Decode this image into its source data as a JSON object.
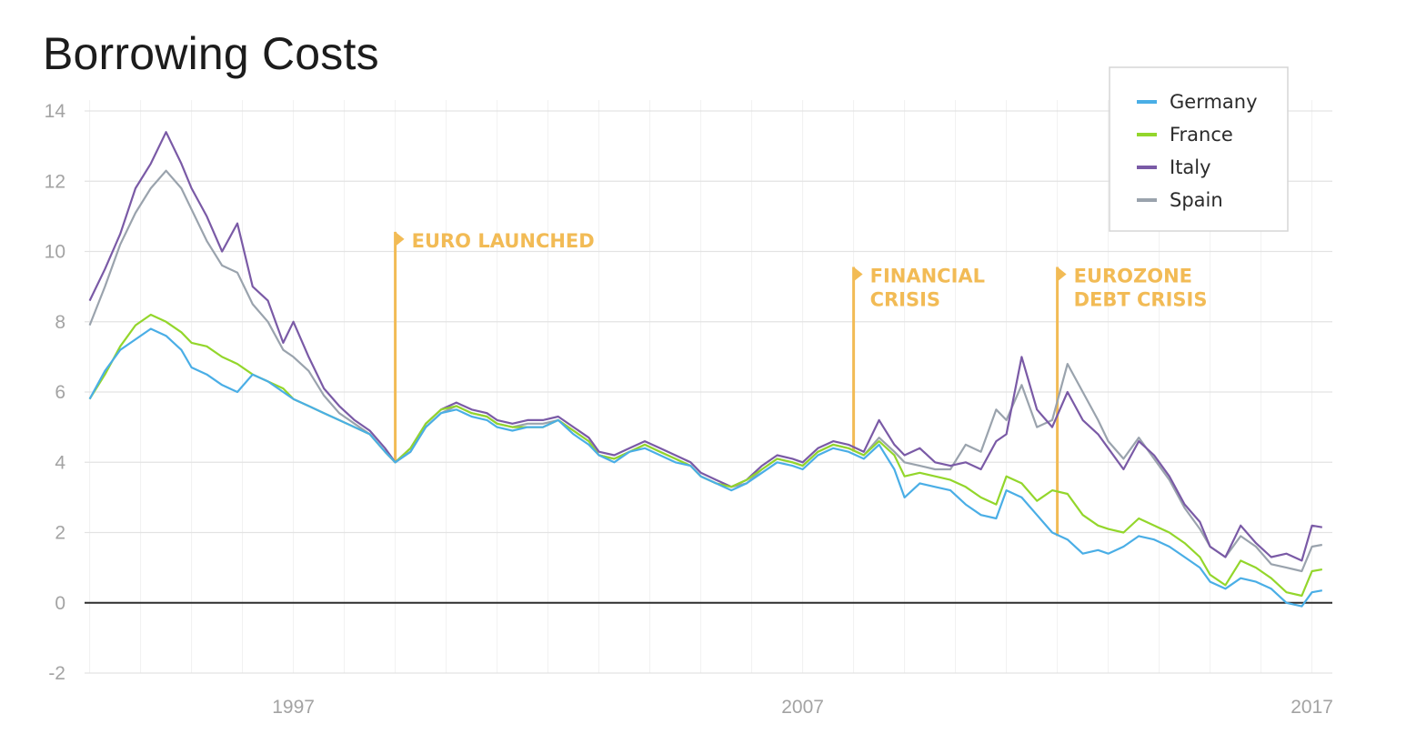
{
  "title": "Borrowing Costs",
  "chart_data": {
    "type": "line",
    "title": "Borrowing Costs",
    "xlabel": "",
    "ylabel": "",
    "xlim": [
      1992.9,
      2017.4
    ],
    "ylim": [
      -2,
      14
    ],
    "y_ticks": [
      -2,
      0,
      2,
      4,
      6,
      8,
      10,
      12,
      14
    ],
    "y_tick_labels": [
      "-2",
      "0",
      "2",
      "4",
      "6",
      "8",
      "10",
      "12",
      "14"
    ],
    "x_ticks": [
      1997,
      2007,
      2017
    ],
    "x_tick_labels": [
      "1997",
      "2007",
      "2017"
    ],
    "grid": true,
    "legend_position": "top-right",
    "series": [
      {
        "name": "Germany",
        "color": "#4aaee6",
        "x": [
          1993.0,
          1993.3,
          1993.6,
          1993.9,
          1994.2,
          1994.5,
          1994.8,
          1995.0,
          1995.3,
          1995.6,
          1995.9,
          1996.2,
          1996.5,
          1996.8,
          1997.0,
          1997.3,
          1997.6,
          1997.9,
          1998.2,
          1998.5,
          1998.8,
          1999.0,
          1999.3,
          1999.6,
          1999.9,
          2000.2,
          2000.5,
          2000.8,
          2001.0,
          2001.3,
          2001.6,
          2001.9,
          2002.2,
          2002.5,
          2002.8,
          2003.0,
          2003.3,
          2003.6,
          2003.9,
          2004.2,
          2004.5,
          2004.8,
          2005.0,
          2005.3,
          2005.6,
          2005.9,
          2006.2,
          2006.5,
          2006.8,
          2007.0,
          2007.3,
          2007.6,
          2007.9,
          2008.2,
          2008.5,
          2008.8,
          2009.0,
          2009.3,
          2009.6,
          2009.9,
          2010.2,
          2010.5,
          2010.8,
          2011.0,
          2011.3,
          2011.6,
          2011.9,
          2012.2,
          2012.5,
          2012.8,
          2013.0,
          2013.3,
          2013.6,
          2013.9,
          2014.2,
          2014.5,
          2014.8,
          2015.0,
          2015.3,
          2015.6,
          2015.9,
          2016.2,
          2016.5,
          2016.8,
          2017.0,
          2017.2
        ],
        "values": [
          5.8,
          6.6,
          7.2,
          7.5,
          7.8,
          7.6,
          7.2,
          6.7,
          6.5,
          6.2,
          6.0,
          6.5,
          6.3,
          6.0,
          5.8,
          5.6,
          5.4,
          5.2,
          5.0,
          4.8,
          4.3,
          4.0,
          4.3,
          5.0,
          5.4,
          5.5,
          5.3,
          5.2,
          5.0,
          4.9,
          5.0,
          5.0,
          5.2,
          4.8,
          4.5,
          4.2,
          4.0,
          4.3,
          4.4,
          4.2,
          4.0,
          3.9,
          3.6,
          3.4,
          3.2,
          3.4,
          3.7,
          4.0,
          3.9,
          3.8,
          4.2,
          4.4,
          4.3,
          4.1,
          4.5,
          3.8,
          3.0,
          3.4,
          3.3,
          3.2,
          2.8,
          2.5,
          2.4,
          3.2,
          3.0,
          2.5,
          2.0,
          1.8,
          1.4,
          1.5,
          1.4,
          1.6,
          1.9,
          1.8,
          1.6,
          1.3,
          1.0,
          0.6,
          0.4,
          0.7,
          0.6,
          0.4,
          0.0,
          -0.1,
          0.3,
          0.35
        ]
      },
      {
        "name": "France",
        "color": "#93d62b",
        "x": [
          1993.0,
          1993.3,
          1993.6,
          1993.9,
          1994.2,
          1994.5,
          1994.8,
          1995.0,
          1995.3,
          1995.6,
          1995.9,
          1996.2,
          1996.5,
          1996.8,
          1997.0,
          1997.3,
          1997.6,
          1997.9,
          1998.2,
          1998.5,
          1998.8,
          1999.0,
          1999.3,
          1999.6,
          1999.9,
          2000.2,
          2000.5,
          2000.8,
          2001.0,
          2001.3,
          2001.6,
          2001.9,
          2002.2,
          2002.5,
          2002.8,
          2003.0,
          2003.3,
          2003.6,
          2003.9,
          2004.2,
          2004.5,
          2004.8,
          2005.0,
          2005.3,
          2005.6,
          2005.9,
          2006.2,
          2006.5,
          2006.8,
          2007.0,
          2007.3,
          2007.6,
          2007.9,
          2008.2,
          2008.5,
          2008.8,
          2009.0,
          2009.3,
          2009.6,
          2009.9,
          2010.2,
          2010.5,
          2010.8,
          2011.0,
          2011.3,
          2011.6,
          2011.9,
          2012.2,
          2012.5,
          2012.8,
          2013.0,
          2013.3,
          2013.6,
          2013.9,
          2014.2,
          2014.5,
          2014.8,
          2015.0,
          2015.3,
          2015.6,
          2015.9,
          2016.2,
          2016.5,
          2016.8,
          2017.0,
          2017.2
        ],
        "values": [
          5.8,
          6.5,
          7.3,
          7.9,
          8.2,
          8.0,
          7.7,
          7.4,
          7.3,
          7.0,
          6.8,
          6.5,
          6.3,
          6.1,
          5.8,
          5.6,
          5.4,
          5.2,
          5.0,
          4.8,
          4.3,
          4.0,
          4.4,
          5.1,
          5.5,
          5.6,
          5.4,
          5.3,
          5.1,
          5.0,
          5.0,
          5.0,
          5.2,
          4.9,
          4.6,
          4.2,
          4.1,
          4.3,
          4.5,
          4.3,
          4.1,
          3.9,
          3.6,
          3.4,
          3.3,
          3.5,
          3.8,
          4.1,
          4.0,
          3.9,
          4.3,
          4.5,
          4.4,
          4.2,
          4.6,
          4.2,
          3.6,
          3.7,
          3.6,
          3.5,
          3.3,
          3.0,
          2.8,
          3.6,
          3.4,
          2.9,
          3.2,
          3.1,
          2.5,
          2.2,
          2.1,
          2.0,
          2.4,
          2.2,
          2.0,
          1.7,
          1.3,
          0.8,
          0.5,
          1.2,
          1.0,
          0.7,
          0.3,
          0.2,
          0.9,
          0.95
        ]
      },
      {
        "name": "Italy",
        "color": "#7a5aa6",
        "x": [
          1993.0,
          1993.3,
          1993.6,
          1993.9,
          1994.2,
          1994.5,
          1994.8,
          1995.0,
          1995.3,
          1995.6,
          1995.9,
          1996.2,
          1996.5,
          1996.8,
          1997.0,
          1997.3,
          1997.6,
          1997.9,
          1998.2,
          1998.5,
          1998.8,
          1999.0,
          1999.3,
          1999.6,
          1999.9,
          2000.2,
          2000.5,
          2000.8,
          2001.0,
          2001.3,
          2001.6,
          2001.9,
          2002.2,
          2002.5,
          2002.8,
          2003.0,
          2003.3,
          2003.6,
          2003.9,
          2004.2,
          2004.5,
          2004.8,
          2005.0,
          2005.3,
          2005.6,
          2005.9,
          2006.2,
          2006.5,
          2006.8,
          2007.0,
          2007.3,
          2007.6,
          2007.9,
          2008.2,
          2008.5,
          2008.8,
          2009.0,
          2009.3,
          2009.6,
          2009.9,
          2010.2,
          2010.5,
          2010.8,
          2011.0,
          2011.3,
          2011.6,
          2011.9,
          2012.2,
          2012.5,
          2012.8,
          2013.0,
          2013.3,
          2013.6,
          2013.9,
          2014.2,
          2014.5,
          2014.8,
          2015.0,
          2015.3,
          2015.6,
          2015.9,
          2016.2,
          2016.5,
          2016.8,
          2017.0,
          2017.2
        ],
        "values": [
          8.6,
          9.5,
          10.5,
          11.8,
          12.5,
          13.4,
          12.5,
          11.8,
          11.0,
          10.0,
          10.8,
          9.0,
          8.6,
          7.4,
          8.0,
          7.0,
          6.1,
          5.6,
          5.2,
          4.9,
          4.4,
          4.0,
          4.4,
          5.1,
          5.5,
          5.7,
          5.5,
          5.4,
          5.2,
          5.1,
          5.2,
          5.2,
          5.3,
          5.0,
          4.7,
          4.3,
          4.2,
          4.4,
          4.6,
          4.4,
          4.2,
          4.0,
          3.7,
          3.5,
          3.3,
          3.5,
          3.9,
          4.2,
          4.1,
          4.0,
          4.4,
          4.6,
          4.5,
          4.3,
          5.2,
          4.5,
          4.2,
          4.4,
          4.0,
          3.9,
          4.0,
          3.8,
          4.6,
          4.8,
          7.0,
          5.5,
          5.0,
          6.0,
          5.2,
          4.8,
          4.4,
          3.8,
          4.6,
          4.2,
          3.6,
          2.8,
          2.3,
          1.6,
          1.3,
          2.2,
          1.7,
          1.3,
          1.4,
          1.2,
          2.2,
          2.15
        ]
      },
      {
        "name": "Spain",
        "color": "#9aa3ad",
        "x": [
          1993.0,
          1993.3,
          1993.6,
          1993.9,
          1994.2,
          1994.5,
          1994.8,
          1995.0,
          1995.3,
          1995.6,
          1995.9,
          1996.2,
          1996.5,
          1996.8,
          1997.0,
          1997.3,
          1997.6,
          1997.9,
          1998.2,
          1998.5,
          1998.8,
          1999.0,
          1999.3,
          1999.6,
          1999.9,
          2000.2,
          2000.5,
          2000.8,
          2001.0,
          2001.3,
          2001.6,
          2001.9,
          2002.2,
          2002.5,
          2002.8,
          2003.0,
          2003.3,
          2003.6,
          2003.9,
          2004.2,
          2004.5,
          2004.8,
          2005.0,
          2005.3,
          2005.6,
          2005.9,
          2006.2,
          2006.5,
          2006.8,
          2007.0,
          2007.3,
          2007.6,
          2007.9,
          2008.2,
          2008.5,
          2008.8,
          2009.0,
          2009.3,
          2009.6,
          2009.9,
          2010.2,
          2010.5,
          2010.8,
          2011.0,
          2011.3,
          2011.6,
          2011.9,
          2012.2,
          2012.5,
          2012.8,
          2013.0,
          2013.3,
          2013.6,
          2013.9,
          2014.2,
          2014.5,
          2014.8,
          2015.0,
          2015.3,
          2015.6,
          2015.9,
          2016.2,
          2016.5,
          2016.8,
          2017.0,
          2017.2
        ],
        "values": [
          7.9,
          9.0,
          10.2,
          11.1,
          11.8,
          12.3,
          11.8,
          11.2,
          10.3,
          9.6,
          9.4,
          8.5,
          8.0,
          7.2,
          7.0,
          6.6,
          5.9,
          5.4,
          5.1,
          4.8,
          4.3,
          4.0,
          4.3,
          5.0,
          5.4,
          5.6,
          5.4,
          5.3,
          5.1,
          5.0,
          5.1,
          5.1,
          5.2,
          4.9,
          4.6,
          4.2,
          4.1,
          4.3,
          4.5,
          4.3,
          4.1,
          3.9,
          3.6,
          3.4,
          3.3,
          3.4,
          3.8,
          4.1,
          4.0,
          3.9,
          4.3,
          4.5,
          4.4,
          4.2,
          4.7,
          4.3,
          4.0,
          3.9,
          3.8,
          3.8,
          4.5,
          4.3,
          5.5,
          5.2,
          6.2,
          5.0,
          5.2,
          6.8,
          6.0,
          5.2,
          4.6,
          4.1,
          4.7,
          4.1,
          3.5,
          2.7,
          2.1,
          1.6,
          1.3,
          1.9,
          1.6,
          1.1,
          1.0,
          0.9,
          1.6,
          1.65
        ]
      }
    ],
    "annotations": [
      {
        "label_lines": [
          "EURO LAUNCHED"
        ],
        "x": 1999.0,
        "y": 10.3
      },
      {
        "label_lines": [
          "FINANCIAL",
          "CRISIS"
        ],
        "x": 2008.0,
        "y": 9.3
      },
      {
        "label_lines": [
          "EUROZONE",
          "DEBT CRISIS"
        ],
        "x": 2012.0,
        "y": 9.3
      }
    ],
    "annotation_color": "#f2bb55"
  }
}
